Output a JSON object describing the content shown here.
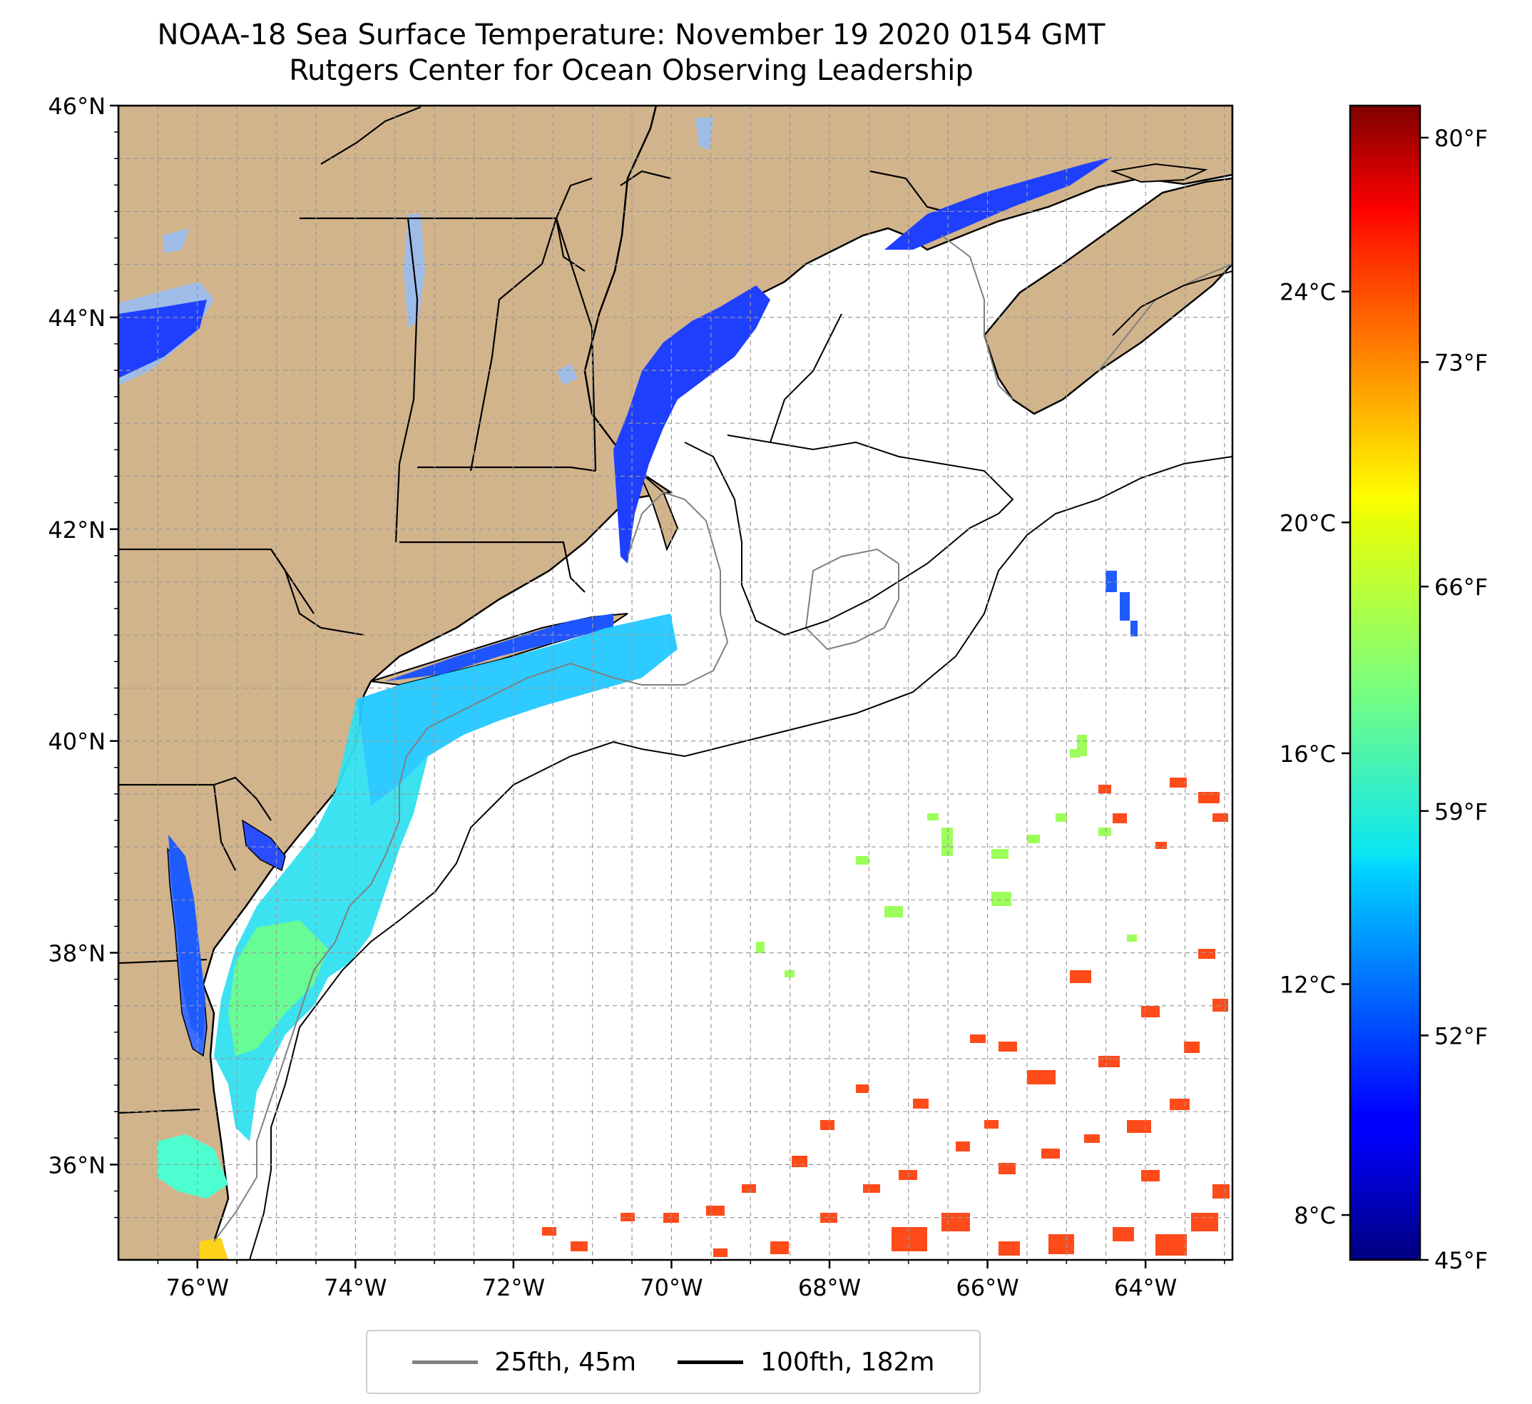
{
  "title": {
    "line1": "NOAA-18 Sea Surface Temperature: November 19 2020 0154 GMT",
    "line2": "Rutgers Center for Ocean Observing Leadership"
  },
  "map": {
    "lat_range": [
      35.1,
      46.0
    ],
    "lon_range": [
      -77.0,
      -62.9
    ],
    "lat_ticks": [
      "46°N",
      "44°N",
      "42°N",
      "40°N",
      "38°N",
      "36°N"
    ],
    "lon_ticks": [
      "76°W",
      "74°W",
      "72°W",
      "70°W",
      "68°W",
      "66°W",
      "64°W"
    ],
    "land_color": "#d2b48c",
    "lake_color": "#9fbce8",
    "ocean_no_data_color": "#ffffff",
    "grid": "dashed"
  },
  "colorbar": {
    "colormap": "jet",
    "celsius_ticks": [
      "24°C",
      "20°C",
      "16°C",
      "12°C",
      "8°C"
    ],
    "fahrenheit_ticks": [
      "80°F",
      "73°F",
      "66°F",
      "59°F",
      "52°F",
      "45°F"
    ],
    "fahrenheit_range": [
      45,
      81
    ],
    "celsius_values": [
      24,
      20,
      16,
      12,
      8
    ],
    "fahrenheit_values": [
      80,
      73,
      66,
      59,
      52,
      45
    ]
  },
  "legend": {
    "items": [
      {
        "label": "25fth, 45m",
        "color": "#808080"
      },
      {
        "label": "100fth, 182m",
        "color": "#000000"
      }
    ]
  }
}
